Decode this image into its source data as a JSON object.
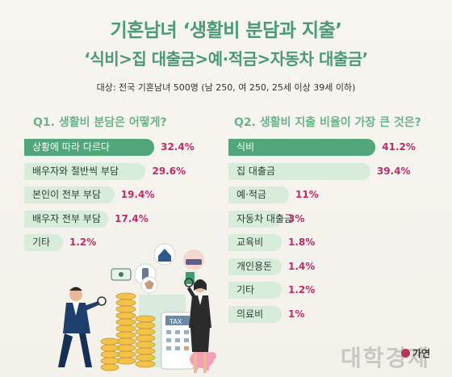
{
  "header": {
    "title": "기혼남녀 ‘생활비 분담과 지출’",
    "subtitle": "‘식비>집 대출금>예·적금>자동차 대출금’",
    "meta": "대상: 전국 기혼남녀 500명 (남 250, 여 250, 25세 이상 39세 이하)"
  },
  "branding": {
    "logo_text": "가연",
    "watermark_text": "대학경제"
  },
  "colors": {
    "accent": "#4a9a73",
    "bar_dark": "#52a77a",
    "bar_light": "#d7ecd9",
    "value": "#c22a6b"
  },
  "chart_data": [
    {
      "type": "bar",
      "orientation": "horizontal",
      "title": "Q1. 생활비 분담은 어떻게?",
      "categories": [
        "상황에 따라 다르다",
        "배우자와 절반씩 부담",
        "본인이 전부 부담",
        "배우자 전부 부담",
        "기타"
      ],
      "values": [
        32.4,
        29.6,
        19.4,
        17.4,
        1.2
      ],
      "labels": [
        "32.4%",
        "29.6%",
        "19.4%",
        "17.4%",
        "1.2%"
      ]
    },
    {
      "type": "bar",
      "orientation": "horizontal",
      "title": "Q2. 생활비 지출 비율이 가장 큰 것은?",
      "categories": [
        "식비",
        "집 대출금",
        "예·적금",
        "자동차 대출금",
        "교육비",
        "개인용돈",
        "기타",
        "의료비"
      ],
      "values": [
        41.2,
        39.4,
        11,
        3,
        1.8,
        1.4,
        1.2,
        1
      ],
      "labels": [
        "41.2%",
        "39.4%",
        "11%",
        "3%",
        "1.8%",
        "1.4%",
        "1.2%",
        "1%"
      ]
    }
  ]
}
